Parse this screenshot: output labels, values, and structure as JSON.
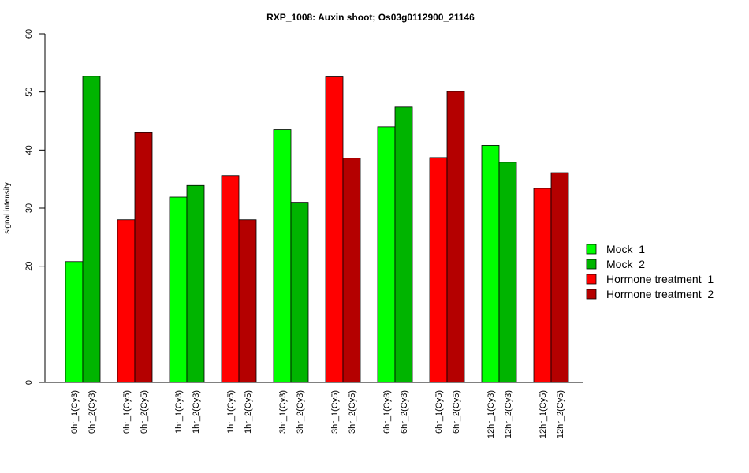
{
  "chart_data": {
    "type": "bar",
    "title": "RXP_1008: Auxin shoot; Os03g0112900_21146",
    "xlabel": "",
    "ylabel": "signal intensity",
    "ylim": [
      0,
      60
    ],
    "yticks": [
      0,
      20,
      30,
      40,
      50,
      60
    ],
    "grid": false,
    "legend_position": "right",
    "categories": [
      "0hr_1(Cy3)",
      "0hr_2(Cy3)",
      "0hr_1(Cy5)",
      "0hr_2(Cy5)",
      "1hr_1(Cy3)",
      "1hr_2(Cy3)",
      "1hr_1(Cy5)",
      "1hr_2(Cy5)",
      "3hr_1(Cy3)",
      "3hr_2(Cy3)",
      "3hr_1(Cy5)",
      "3hr_2(Cy5)",
      "6hr_1(Cy3)",
      "6hr_2(Cy3)",
      "6hr_1(Cy5)",
      "6hr_2(Cy5)",
      "12hr_1(Cy3)",
      "12hr_2(Cy3)",
      "12hr_1(Cy5)",
      "12hr_2(Cy5)"
    ],
    "values": [
      20.8,
      52.7,
      28.0,
      43.0,
      31.9,
      33.9,
      35.6,
      28.0,
      43.5,
      31.0,
      52.6,
      38.6,
      44.0,
      47.4,
      38.7,
      50.1,
      40.8,
      37.9,
      33.4,
      36.1
    ],
    "bar_series": [
      "Mock_1",
      "Mock_2",
      "Hormone treatment_1",
      "Hormone treatment_2",
      "Mock_1",
      "Mock_2",
      "Hormone treatment_1",
      "Hormone treatment_2",
      "Mock_1",
      "Mock_2",
      "Hormone treatment_1",
      "Hormone treatment_2",
      "Mock_1",
      "Mock_2",
      "Hormone treatment_1",
      "Hormone treatment_2",
      "Mock_1",
      "Mock_2",
      "Hormone treatment_1",
      "Hormone treatment_2"
    ],
    "series": [
      {
        "name": "Mock_1",
        "color": "#00ff00"
      },
      {
        "name": "Mock_2",
        "color": "#00b400"
      },
      {
        "name": "Hormone treatment_1",
        "color": "#ff0000"
      },
      {
        "name": "Hormone treatment_2",
        "color": "#b40000"
      }
    ]
  }
}
